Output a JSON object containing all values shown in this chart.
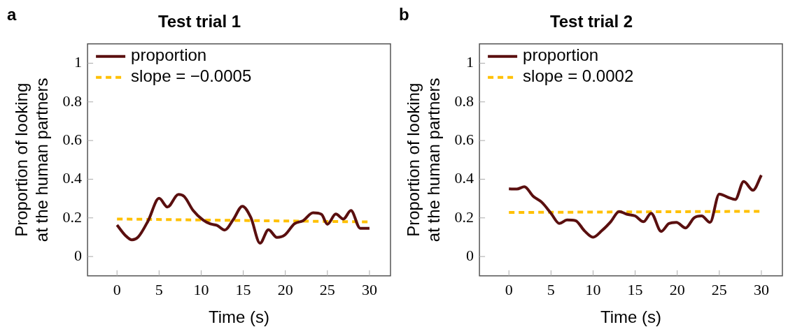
{
  "chart_data": [
    {
      "type": "line",
      "title": "Test trial 1",
      "xlabel": "Time (s)",
      "ylabel": "Proportion of looking at the human partners",
      "annotations": [
        "a"
      ],
      "xlim": [
        -3.5,
        32.5
      ],
      "xticks": [
        0,
        5,
        10,
        15,
        20,
        25,
        30
      ],
      "ylim": [
        -0.1,
        1.1
      ],
      "yticks": [
        0,
        0.2,
        0.4,
        0.6,
        0.8,
        1
      ],
      "grid": false,
      "legend": "top left",
      "series": [
        {
          "name": "proportion",
          "color": "#5a0f0f",
          "line_style": "solid",
          "x": [
            0,
            1.04,
            1.78,
            2.5,
            3.7,
            5,
            6,
            7.3,
            8,
            9.05,
            10.2,
            11.1,
            11.9,
            12.8,
            13.8,
            14.9,
            15.9,
            17,
            18,
            19,
            19.9,
            21.1,
            22.1,
            23.3,
            24.3,
            25,
            26,
            26.9,
            27.8,
            28.9,
            30
          ],
          "values": [
            0.163,
            0.107,
            0.086,
            0.1,
            0.185,
            0.301,
            0.256,
            0.321,
            0.31,
            0.238,
            0.19,
            0.169,
            0.161,
            0.137,
            0.19,
            0.26,
            0.202,
            0.069,
            0.139,
            0.099,
            0.11,
            0.17,
            0.185,
            0.226,
            0.218,
            0.167,
            0.22,
            0.194,
            0.238,
            0.146,
            0.146
          ]
        },
        {
          "name": "slope = −0.0005",
          "color": "#ffc000",
          "line_style": "dashed",
          "x": [
            0,
            30
          ],
          "values": [
            0.194,
            0.179
          ]
        }
      ]
    },
    {
      "type": "line",
      "title": "Test trial 2",
      "xlabel": "Time (s)",
      "ylabel": "Proportion of looking at the human partners",
      "annotations": [
        "b"
      ],
      "xlim": [
        -3.5,
        32.5
      ],
      "xticks": [
        0,
        5,
        10,
        15,
        20,
        25,
        30
      ],
      "ylim": [
        -0.1,
        1.1
      ],
      "yticks": [
        0,
        0.2,
        0.4,
        0.6,
        0.8,
        1
      ],
      "grid": false,
      "legend": "top left",
      "series": [
        {
          "name": "proportion",
          "color": "#5a0f0f",
          "line_style": "solid",
          "x": [
            0,
            0.95,
            1.84,
            2.9,
            3.9,
            5,
            6,
            6.9,
            7.9,
            9,
            10,
            11,
            12.1,
            13.1,
            14,
            15,
            16,
            16.9,
            18.1,
            19,
            19.9,
            21,
            22,
            22.9,
            23.9,
            25,
            26.1,
            26.9,
            27.9,
            29,
            30
          ],
          "values": [
            0.35,
            0.349,
            0.361,
            0.311,
            0.281,
            0.224,
            0.171,
            0.189,
            0.186,
            0.132,
            0.1,
            0.132,
            0.18,
            0.233,
            0.219,
            0.21,
            0.18,
            0.224,
            0.13,
            0.17,
            0.177,
            0.148,
            0.2,
            0.21,
            0.177,
            0.323,
            0.305,
            0.295,
            0.388,
            0.343,
            0.421
          ]
        },
        {
          "name": "slope = 0.0002",
          "color": "#ffc000",
          "line_style": "dashed",
          "x": [
            0,
            30
          ],
          "values": [
            0.228,
            0.234
          ]
        }
      ]
    }
  ]
}
